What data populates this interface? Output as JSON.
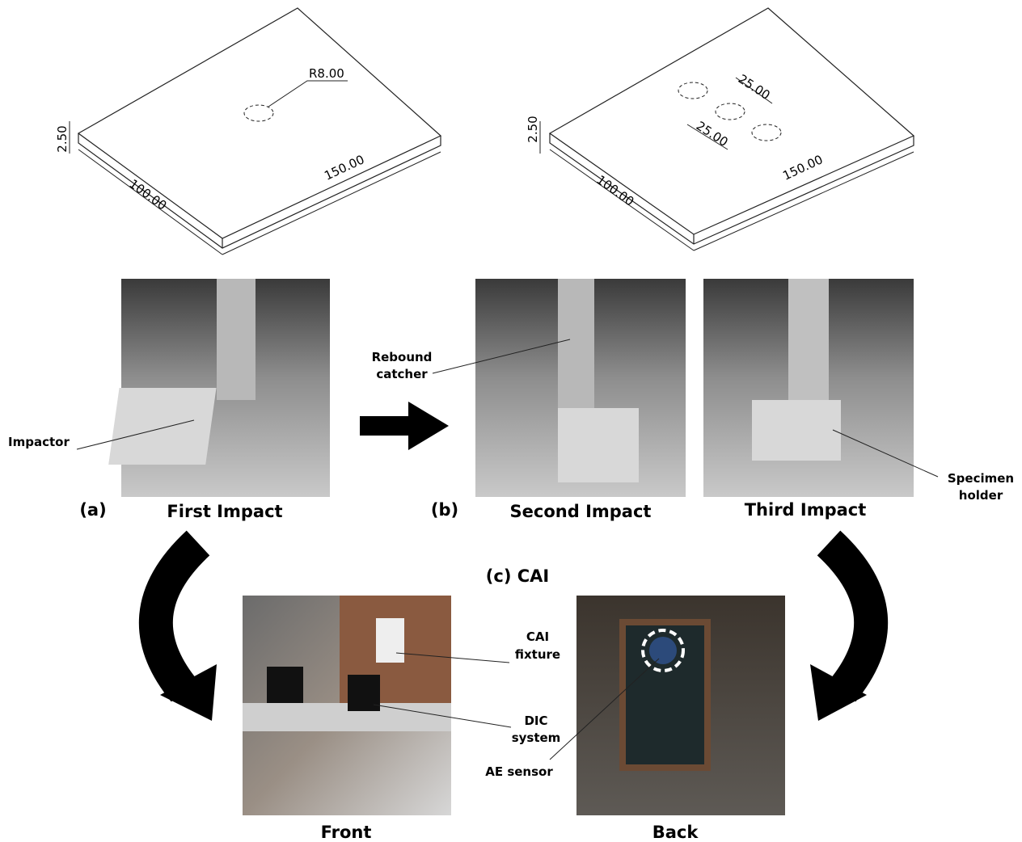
{
  "drawing_1": {
    "radius_label": "R8.00",
    "thickness_label": "2.50",
    "width_label": "100.00",
    "length_label": "150.00"
  },
  "drawing_2": {
    "thickness_label": "2.50",
    "width_label": "100.00",
    "length_label": "150.00",
    "spacing_labels": [
      "25.00",
      "25.00"
    ]
  },
  "impact_panels": [
    {
      "tag": "(a)",
      "caption": "First Impact",
      "callout": [
        "Impactor"
      ]
    },
    {
      "tag": "(b)",
      "caption": "Second Impact",
      "callout": [
        "Rebound",
        "catcher"
      ]
    },
    {
      "caption": "Third Impact",
      "callout": [
        "Specimen",
        "holder"
      ]
    }
  ],
  "cai": {
    "title": "(c) CAI",
    "front": {
      "caption": "Front",
      "callouts": [
        [
          "CAI",
          "fixture"
        ],
        [
          "DIC",
          "system"
        ]
      ]
    },
    "back": {
      "caption": "Back",
      "callouts": [
        [
          "AE sensor"
        ]
      ]
    }
  }
}
